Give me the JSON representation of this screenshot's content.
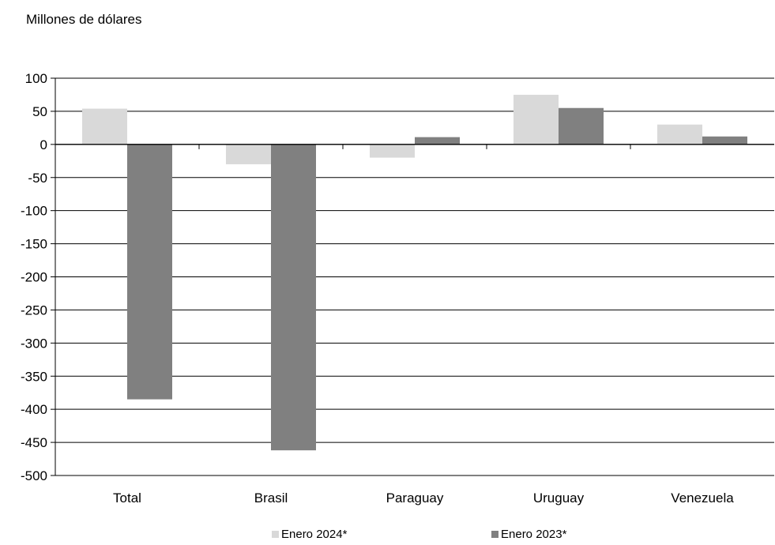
{
  "chart_data": {
    "type": "bar",
    "title": "",
    "ylabel": "Millones de dólares",
    "xlabel": "",
    "categories": [
      "Total",
      "Brasil",
      "Paraguay",
      "Uruguay",
      "Venezuela"
    ],
    "series": [
      {
        "name": "Enero 2024*",
        "color": "#d9d9d9",
        "values": [
          54,
          -30,
          -20,
          75,
          30
        ]
      },
      {
        "name": "Enero 2023*",
        "color": "#808080",
        "values": [
          -385,
          -462,
          11,
          55,
          12
        ]
      }
    ],
    "ylim": [
      -500,
      100
    ],
    "yticks": [
      100,
      50,
      0,
      -50,
      -100,
      -150,
      -200,
      -250,
      -300,
      -350,
      -400,
      -450,
      -500
    ],
    "grid": true,
    "legend": "bottom-center"
  }
}
